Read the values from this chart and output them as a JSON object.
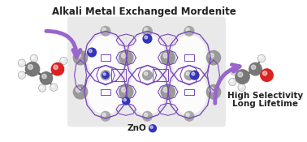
{
  "title": "Alkali Metal Exchanged Mordenite",
  "zno_label": "ZnO",
  "right_label_line1": "High Selectivity",
  "right_label_line2": "Long Lifetime",
  "bg_color": "#ffffff",
  "title_fontsize": 8.5,
  "label_fontsize": 7.5,
  "zno_dot_color": "#3333bb",
  "arrow_color": "#9966cc",
  "framework_line_color": "#7744bb",
  "framework_node_color": "#909090",
  "ethanol_C_color": "#777777",
  "ethanol_H_color": "#e8e8e8",
  "ethanol_O_color": "#dd2020",
  "acetaldehyde_C_color": "#777777",
  "acetaldehyde_H_color": "#e8e8e8",
  "acetaldehyde_O_color": "#dd2020",
  "zeolite_bg_color": "#d5d5d5",
  "channel_color": "#e8e8e8",
  "connector_color": "#aaaaaa"
}
